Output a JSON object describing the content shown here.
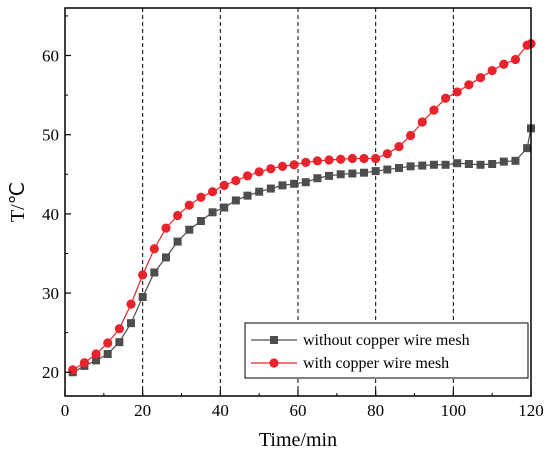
{
  "chart_data": {
    "type": "line",
    "title": "",
    "xlabel": "Time/min",
    "ylabel": "T/℃",
    "xlim": [
      0,
      120
    ],
    "ylim": [
      17,
      66
    ],
    "x_ticks": [
      0,
      20,
      40,
      60,
      80,
      100,
      120
    ],
    "y_ticks": [
      20,
      30,
      40,
      50,
      60
    ],
    "x_tick_labels": [
      "0",
      "20",
      "40",
      "60",
      "80",
      "100",
      "120"
    ],
    "y_tick_labels": [
      "20",
      "30",
      "40",
      "50",
      "60"
    ],
    "vertical_dashed_lines": [
      20,
      40,
      60,
      80,
      100
    ],
    "grid": false,
    "legend_position": "bottom-right",
    "series": [
      {
        "name": "without copper wire mesh",
        "marker": "square",
        "color": "#4d4d4d",
        "x": [
          2,
          5,
          8,
          11,
          14,
          17,
          20,
          23,
          26,
          29,
          32,
          35,
          38,
          41,
          44,
          47,
          50,
          53,
          56,
          59,
          62,
          65,
          68,
          71,
          74,
          77,
          80,
          83,
          86,
          89,
          92,
          95,
          98,
          101,
          104,
          107,
          110,
          113,
          116,
          119,
          120
        ],
        "y": [
          20.0,
          20.8,
          21.5,
          22.3,
          23.8,
          26.2,
          29.5,
          32.6,
          34.5,
          36.5,
          38.0,
          39.1,
          40.2,
          40.8,
          41.7,
          42.3,
          42.8,
          43.2,
          43.6,
          43.8,
          44.0,
          44.5,
          44.8,
          45.0,
          45.1,
          45.2,
          45.4,
          45.6,
          45.8,
          46.0,
          46.1,
          46.2,
          46.2,
          46.4,
          46.3,
          46.2,
          46.3,
          46.6,
          46.7,
          48.3,
          50.8
        ]
      },
      {
        "name": "with copper wire mesh",
        "marker": "circle",
        "color": "#e8232b",
        "x": [
          2,
          5,
          8,
          11,
          14,
          17,
          20,
          23,
          26,
          29,
          32,
          35,
          38,
          41,
          44,
          47,
          50,
          53,
          56,
          59,
          62,
          65,
          68,
          71,
          74,
          77,
          80,
          83,
          86,
          89,
          92,
          95,
          98,
          101,
          104,
          107,
          110,
          113,
          116,
          119,
          120
        ],
        "y": [
          20.3,
          21.2,
          22.3,
          23.7,
          25.5,
          28.6,
          32.3,
          35.6,
          38.2,
          39.8,
          41.1,
          42.1,
          42.8,
          43.6,
          44.2,
          44.8,
          45.3,
          45.7,
          46.0,
          46.2,
          46.5,
          46.7,
          46.8,
          46.9,
          47.0,
          47.0,
          47.0,
          47.6,
          48.5,
          49.9,
          51.6,
          53.1,
          54.6,
          55.4,
          56.3,
          57.2,
          58.1,
          58.9,
          59.5,
          61.3,
          61.5
        ]
      }
    ]
  },
  "colors": {
    "series_dark": "#4d4d4d",
    "series_red": "#e8232b",
    "axis": "#000000"
  }
}
